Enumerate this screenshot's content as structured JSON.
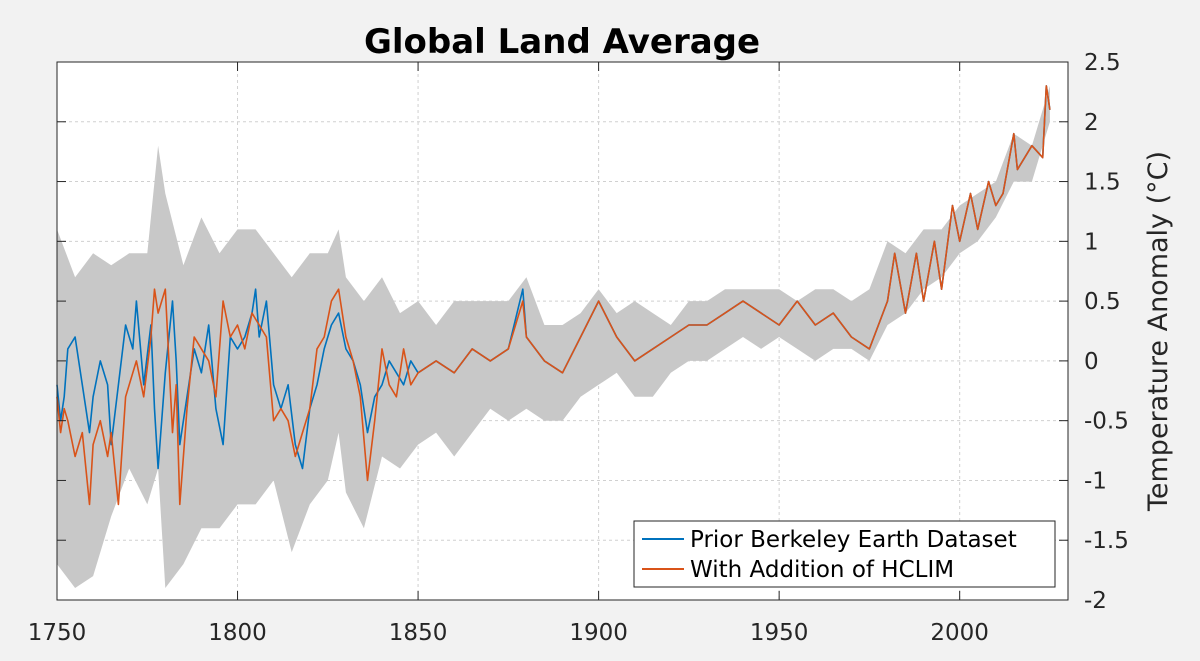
{
  "chart_data": {
    "type": "line",
    "title": "Global Land Average",
    "xlabel": "",
    "ylabel": "Temperature Anomaly (°C)",
    "xlim": [
      1750,
      2030
    ],
    "ylim": [
      -2,
      2.5
    ],
    "xticks": [
      1750,
      1800,
      1850,
      1900,
      1950,
      2000
    ],
    "yticks": [
      2.5,
      2,
      1.5,
      1,
      0.5,
      0,
      -0.5,
      -1,
      -1.5,
      -2
    ],
    "xtick_labels": [
      "1750",
      "1800",
      "1850",
      "1900",
      "1950",
      "2000"
    ],
    "ytick_labels": [
      "2.5",
      "2",
      "1.5",
      "1",
      "0.5",
      "0",
      "-0.5",
      "-1",
      "-1.5",
      "-2"
    ],
    "grid": true,
    "y_axis_side": "right",
    "legend_position": "bottom-right",
    "uncertainty_band": {
      "color": "#c8c8c8",
      "x": [
        1750,
        1755,
        1760,
        1765,
        1770,
        1775,
        1778,
        1780,
        1785,
        1790,
        1795,
        1800,
        1805,
        1810,
        1815,
        1820,
        1825,
        1828,
        1830,
        1835,
        1840,
        1845,
        1850,
        1855,
        1860,
        1865,
        1870,
        1875,
        1880,
        1885,
        1890,
        1895,
        1900,
        1905,
        1910,
        1915,
        1920,
        1925,
        1930,
        1935,
        1940,
        1945,
        1950,
        1955,
        1960,
        1965,
        1970,
        1975,
        1980,
        1985,
        1990,
        1995,
        2000,
        2005,
        2010,
        2015,
        2020,
        2025
      ],
      "upper": [
        1.1,
        0.7,
        0.9,
        0.8,
        0.9,
        0.9,
        1.8,
        1.4,
        0.8,
        1.2,
        0.9,
        1.1,
        1.1,
        0.9,
        0.7,
        0.9,
        0.9,
        1.1,
        0.7,
        0.5,
        0.7,
        0.4,
        0.5,
        0.3,
        0.5,
        0.5,
        0.5,
        0.5,
        0.7,
        0.3,
        0.3,
        0.4,
        0.6,
        0.4,
        0.5,
        0.4,
        0.3,
        0.5,
        0.5,
        0.6,
        0.6,
        0.6,
        0.6,
        0.5,
        0.6,
        0.6,
        0.5,
        0.6,
        1.0,
        0.9,
        1.1,
        1.1,
        1.3,
        1.4,
        1.5,
        1.9,
        1.8,
        2.3
      ],
      "lower": [
        -1.7,
        -1.9,
        -1.8,
        -1.3,
        -0.9,
        -1.2,
        -0.9,
        -1.9,
        -1.7,
        -1.4,
        -1.4,
        -1.2,
        -1.2,
        -1.0,
        -1.6,
        -1.2,
        -1.0,
        -0.6,
        -1.1,
        -1.4,
        -0.8,
        -0.9,
        -0.7,
        -0.6,
        -0.8,
        -0.6,
        -0.4,
        -0.5,
        -0.4,
        -0.5,
        -0.5,
        -0.3,
        -0.2,
        -0.1,
        -0.3,
        -0.3,
        -0.1,
        0.0,
        0.0,
        0.1,
        0.2,
        0.1,
        0.2,
        0.1,
        0.0,
        0.1,
        0.1,
        0.0,
        0.3,
        0.4,
        0.6,
        0.7,
        0.9,
        1.0,
        1.2,
        1.5,
        1.5,
        2.0
      ]
    },
    "series": [
      {
        "name": "Prior Berkeley Earth Dataset",
        "color": "#0072bd",
        "x": [
          1750,
          1751,
          1752,
          1753,
          1755,
          1757,
          1759,
          1760,
          1762,
          1764,
          1765,
          1767,
          1769,
          1771,
          1772,
          1774,
          1776,
          1777,
          1778,
          1780,
          1782,
          1783,
          1784,
          1786,
          1788,
          1790,
          1792,
          1794,
          1796,
          1798,
          1800,
          1802,
          1804,
          1805,
          1806,
          1808,
          1810,
          1812,
          1814,
          1816,
          1818,
          1820,
          1822,
          1824,
          1826,
          1828,
          1830,
          1832,
          1834,
          1836,
          1838,
          1840,
          1842,
          1844,
          1846,
          1848,
          1850,
          1855,
          1860,
          1865,
          1870,
          1875,
          1879,
          1880,
          1885,
          1890,
          1895,
          1900,
          1905,
          1910,
          1915,
          1920,
          1925,
          1930,
          1935,
          1940,
          1945,
          1950,
          1955,
          1960,
          1965,
          1970,
          1975,
          1980,
          1982,
          1985,
          1988,
          1990,
          1993,
          1995,
          1998,
          2000,
          2003,
          2005,
          2008,
          2010,
          2012,
          2015,
          2016,
          2018,
          2020,
          2023,
          2024,
          2025
        ],
        "values": [
          -0.2,
          -0.5,
          -0.3,
          0.1,
          0.2,
          -0.2,
          -0.6,
          -0.3,
          0.0,
          -0.2,
          -0.7,
          -0.2,
          0.3,
          0.1,
          0.5,
          -0.2,
          0.3,
          -0.4,
          -0.9,
          -0.1,
          0.5,
          0.0,
          -0.7,
          -0.3,
          0.1,
          -0.1,
          0.3,
          -0.4,
          -0.7,
          0.2,
          0.1,
          0.2,
          0.4,
          0.6,
          0.2,
          0.5,
          -0.2,
          -0.4,
          -0.2,
          -0.7,
          -0.9,
          -0.4,
          -0.2,
          0.1,
          0.3,
          0.4,
          0.1,
          0.0,
          -0.2,
          -0.6,
          -0.3,
          -0.2,
          0.0,
          -0.1,
          -0.2,
          0.0,
          -0.1,
          0.0,
          -0.1,
          0.1,
          0.0,
          0.1,
          0.6,
          0.2,
          0.0,
          -0.1,
          0.2,
          0.5,
          0.2,
          0.0,
          0.1,
          0.2,
          0.3,
          0.3,
          0.4,
          0.5,
          0.4,
          0.3,
          0.5,
          0.3,
          0.4,
          0.2,
          0.1,
          0.5,
          0.9,
          0.4,
          0.9,
          0.5,
          1.0,
          0.6,
          1.3,
          1.0,
          1.4,
          1.1,
          1.5,
          1.3,
          1.4,
          1.9,
          1.6,
          1.7,
          1.8,
          1.7,
          2.3,
          2.1
        ]
      },
      {
        "name": "With Addition of HCLIM",
        "color": "#d95319",
        "x": [
          1750,
          1751,
          1752,
          1753,
          1755,
          1757,
          1758,
          1759,
          1760,
          1762,
          1764,
          1765,
          1767,
          1769,
          1771,
          1772,
          1774,
          1776,
          1777,
          1778,
          1780,
          1782,
          1783,
          1784,
          1786,
          1788,
          1790,
          1792,
          1794,
          1796,
          1798,
          1800,
          1802,
          1804,
          1806,
          1808,
          1810,
          1812,
          1814,
          1816,
          1818,
          1820,
          1822,
          1824,
          1826,
          1828,
          1830,
          1832,
          1834,
          1836,
          1838,
          1840,
          1842,
          1844,
          1846,
          1848,
          1850,
          1855,
          1860,
          1865,
          1870,
          1875,
          1879,
          1880,
          1885,
          1890,
          1895,
          1900,
          1905,
          1910,
          1915,
          1920,
          1925,
          1930,
          1935,
          1940,
          1945,
          1950,
          1955,
          1960,
          1965,
          1970,
          1975,
          1980,
          1982,
          1985,
          1988,
          1990,
          1993,
          1995,
          1998,
          2000,
          2003,
          2005,
          2008,
          2010,
          2012,
          2015,
          2016,
          2018,
          2020,
          2023,
          2024,
          2025
        ],
        "values": [
          -0.3,
          -0.6,
          -0.4,
          -0.5,
          -0.8,
          -0.6,
          -0.9,
          -1.2,
          -0.7,
          -0.5,
          -0.8,
          -0.6,
          -1.2,
          -0.3,
          -0.1,
          0.0,
          -0.3,
          0.2,
          0.6,
          0.4,
          0.6,
          -0.6,
          -0.2,
          -1.2,
          -0.4,
          0.2,
          0.1,
          0.0,
          -0.3,
          0.5,
          0.2,
          0.3,
          0.1,
          0.4,
          0.3,
          0.2,
          -0.5,
          -0.4,
          -0.5,
          -0.8,
          -0.6,
          -0.4,
          0.1,
          0.2,
          0.5,
          0.6,
          0.2,
          0.0,
          -0.3,
          -1.0,
          -0.5,
          0.1,
          -0.2,
          -0.3,
          0.1,
          -0.2,
          -0.1,
          0.0,
          -0.1,
          0.1,
          0.0,
          0.1,
          0.5,
          0.2,
          0.0,
          -0.1,
          0.2,
          0.5,
          0.2,
          0.0,
          0.1,
          0.2,
          0.3,
          0.3,
          0.4,
          0.5,
          0.4,
          0.3,
          0.5,
          0.3,
          0.4,
          0.2,
          0.1,
          0.5,
          0.9,
          0.4,
          0.9,
          0.5,
          1.0,
          0.6,
          1.3,
          1.0,
          1.4,
          1.1,
          1.5,
          1.3,
          1.4,
          1.9,
          1.6,
          1.7,
          1.8,
          1.7,
          2.3,
          2.1
        ]
      }
    ]
  }
}
